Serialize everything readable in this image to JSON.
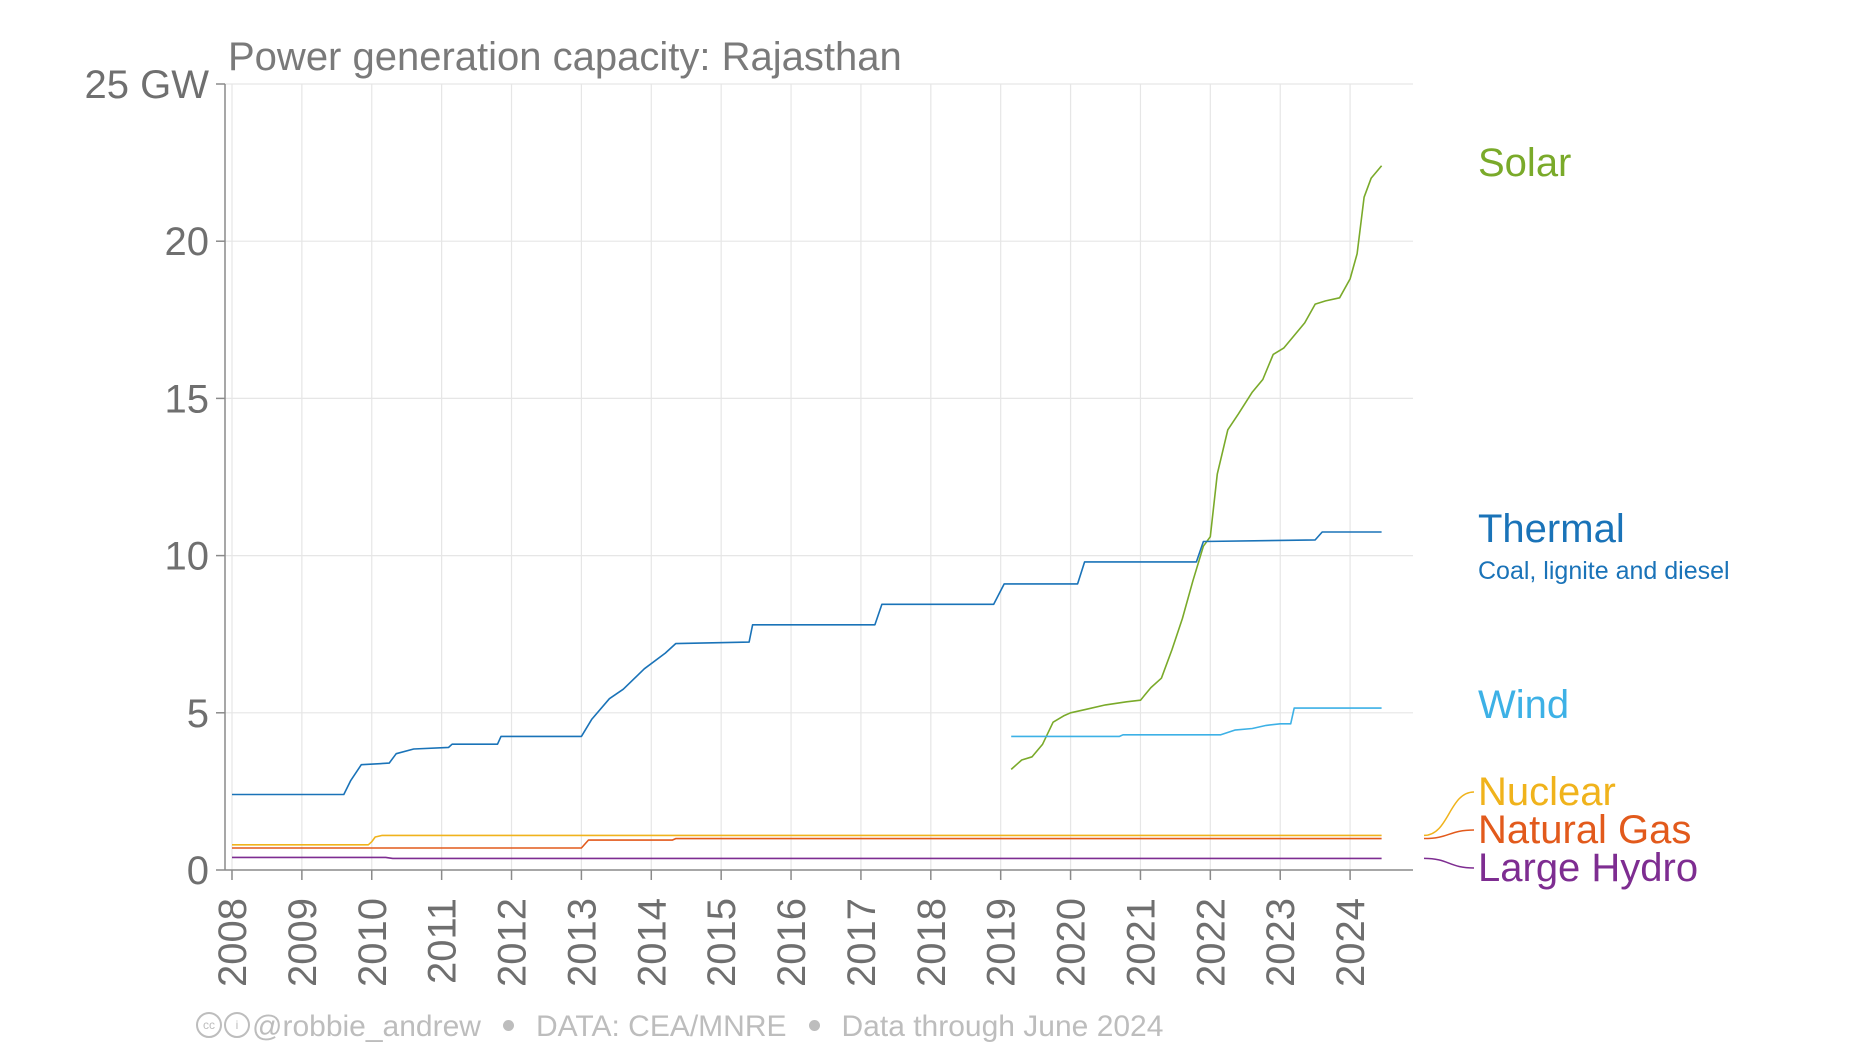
{
  "chart_data": {
    "type": "line",
    "title": "Power generation capacity: Rajasthan",
    "ylabel": "",
    "xlabel": "",
    "ylim": [
      0,
      25
    ],
    "yticks": [
      0,
      5,
      10,
      15,
      20,
      25
    ],
    "ytick_labels": [
      "0",
      "5",
      "10",
      "15",
      "20",
      "25 GW"
    ],
    "x_range": [
      2007.9,
      2024.9
    ],
    "xticks": [
      2008,
      2009,
      2010,
      2011,
      2012,
      2013,
      2014,
      2015,
      2016,
      2017,
      2018,
      2019,
      2020,
      2021,
      2022,
      2023,
      2024
    ],
    "grid": true,
    "legend": "direct labels at right end",
    "series": [
      {
        "name": "Solar",
        "color": "#7aaa2a",
        "points": [
          [
            2019.15,
            3.2
          ],
          [
            2019.3,
            3.5
          ],
          [
            2019.45,
            3.6
          ],
          [
            2019.6,
            4.0
          ],
          [
            2019.75,
            4.7
          ],
          [
            2019.9,
            4.9
          ],
          [
            2020.0,
            5.0
          ],
          [
            2020.2,
            5.1
          ],
          [
            2020.5,
            5.25
          ],
          [
            2020.8,
            5.35
          ],
          [
            2021.0,
            5.4
          ],
          [
            2021.15,
            5.8
          ],
          [
            2021.3,
            6.1
          ],
          [
            2021.45,
            7.0
          ],
          [
            2021.6,
            8.0
          ],
          [
            2021.75,
            9.2
          ],
          [
            2021.9,
            10.3
          ],
          [
            2022.0,
            10.6
          ],
          [
            2022.1,
            12.6
          ],
          [
            2022.25,
            14.0
          ],
          [
            2022.4,
            14.5
          ],
          [
            2022.6,
            15.2
          ],
          [
            2022.75,
            15.6
          ],
          [
            2022.9,
            16.4
          ],
          [
            2023.05,
            16.6
          ],
          [
            2023.2,
            17.0
          ],
          [
            2023.35,
            17.4
          ],
          [
            2023.5,
            18.0
          ],
          [
            2023.65,
            18.1
          ],
          [
            2023.85,
            18.2
          ],
          [
            2024.0,
            18.8
          ],
          [
            2024.1,
            19.6
          ],
          [
            2024.2,
            21.4
          ],
          [
            2024.3,
            22.0
          ],
          [
            2024.45,
            22.4
          ]
        ]
      },
      {
        "name": "Thermal",
        "subtitle": "Coal, lignite and diesel",
        "color": "#1a73b8",
        "points": [
          [
            2008.0,
            2.4
          ],
          [
            2009.6,
            2.4
          ],
          [
            2009.7,
            2.85
          ],
          [
            2009.85,
            3.35
          ],
          [
            2010.25,
            3.4
          ],
          [
            2010.35,
            3.7
          ],
          [
            2010.6,
            3.85
          ],
          [
            2011.1,
            3.9
          ],
          [
            2011.15,
            4.0
          ],
          [
            2011.8,
            4.0
          ],
          [
            2011.85,
            4.25
          ],
          [
            2013.0,
            4.25
          ],
          [
            2013.15,
            4.8
          ],
          [
            2013.4,
            5.45
          ],
          [
            2013.6,
            5.75
          ],
          [
            2013.9,
            6.4
          ],
          [
            2014.2,
            6.9
          ],
          [
            2014.35,
            7.2
          ],
          [
            2015.4,
            7.25
          ],
          [
            2015.45,
            7.8
          ],
          [
            2017.2,
            7.8
          ],
          [
            2017.3,
            8.45
          ],
          [
            2018.9,
            8.45
          ],
          [
            2019.05,
            9.1
          ],
          [
            2020.1,
            9.1
          ],
          [
            2020.2,
            9.8
          ],
          [
            2021.8,
            9.8
          ],
          [
            2021.9,
            10.45
          ],
          [
            2023.5,
            10.5
          ],
          [
            2023.6,
            10.75
          ],
          [
            2024.45,
            10.75
          ]
        ]
      },
      {
        "name": "Wind",
        "color": "#3db1e6",
        "points": [
          [
            2019.15,
            4.25
          ],
          [
            2020.7,
            4.25
          ],
          [
            2020.75,
            4.3
          ],
          [
            2022.15,
            4.3
          ],
          [
            2022.35,
            4.45
          ],
          [
            2022.6,
            4.5
          ],
          [
            2022.8,
            4.6
          ],
          [
            2023.0,
            4.65
          ],
          [
            2023.15,
            4.65
          ],
          [
            2023.2,
            5.15
          ],
          [
            2024.45,
            5.15
          ]
        ]
      },
      {
        "name": "Nuclear",
        "color": "#f0b31c",
        "points": [
          [
            2008.0,
            0.8
          ],
          [
            2009.95,
            0.8
          ],
          [
            2010.0,
            0.9
          ],
          [
            2010.05,
            1.05
          ],
          [
            2010.15,
            1.1
          ],
          [
            2024.45,
            1.1
          ]
        ]
      },
      {
        "name": "Natural Gas",
        "color": "#e25a1c",
        "points": [
          [
            2008.0,
            0.7
          ],
          [
            2013.0,
            0.7
          ],
          [
            2013.1,
            0.95
          ],
          [
            2014.3,
            0.95
          ],
          [
            2014.35,
            1.0
          ],
          [
            2024.45,
            1.0
          ]
        ]
      },
      {
        "name": "Large Hydro",
        "color": "#7e2d91",
        "points": [
          [
            2008.0,
            0.4
          ],
          [
            2010.2,
            0.4
          ],
          [
            2010.3,
            0.37
          ],
          [
            2024.45,
            0.37
          ]
        ]
      }
    ]
  },
  "footer": {
    "handle": "@robbie_andrew",
    "source": "DATA: CEA/MNRE",
    "note": "Data through June 2024"
  }
}
